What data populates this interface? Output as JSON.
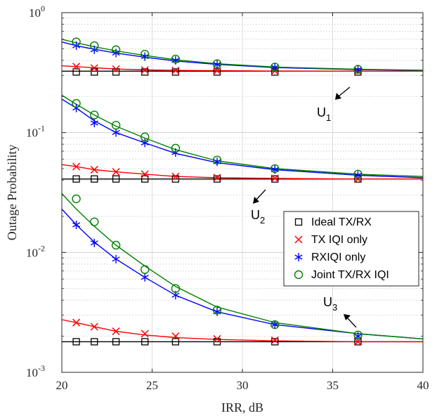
{
  "chart_data": {
    "type": "line",
    "xlabel": "IRR, dB",
    "ylabel": "Outage Probability",
    "xlim": [
      20,
      40
    ],
    "ylim": [
      0.001,
      1
    ],
    "yscale": "log",
    "grid": true,
    "legend_placement": "lower-right",
    "x_ticks": [
      20,
      25,
      30,
      35,
      40
    ],
    "y_ticks": [
      {
        "value": 0.001,
        "base": "10",
        "exp": "-3"
      },
      {
        "value": 0.01,
        "base": "10",
        "exp": "-2"
      },
      {
        "value": 0.1,
        "base": "10",
        "exp": "-1"
      },
      {
        "value": 1,
        "base": "10",
        "exp": "0"
      }
    ],
    "x_marker": [
      20.8,
      21.8,
      23.0,
      24.6,
      26.3,
      28.6,
      31.8,
      36.4
    ],
    "x_curve": [
      20,
      20.8,
      21.8,
      23.0,
      24.6,
      26.3,
      28.6,
      31.8,
      36.4,
      40
    ],
    "series": [
      {
        "name": "Ideal TX/RX",
        "color": "#000000",
        "marker": "square"
      },
      {
        "name": "TX IQI only",
        "color": "#ff0000",
        "marker": "x"
      },
      {
        "name": "RXIQI only",
        "color": "#0000ff",
        "marker": "asterisk"
      },
      {
        "name": "Joint TX/RX IQI",
        "color": "#008000",
        "marker": "circle"
      }
    ],
    "groups": [
      {
        "label": "U",
        "sub": "1",
        "ideal": {
          "marker": [
            0.32,
            0.32,
            0.32,
            0.32,
            0.32,
            0.32,
            0.32,
            0.32
          ],
          "curve": [
            0.325,
            0.325,
            0.325,
            0.325,
            0.325,
            0.325,
            0.325,
            0.325,
            0.325,
            0.325
          ]
        },
        "tx": {
          "marker": [
            0.355,
            0.345,
            0.338,
            0.332,
            0.329,
            0.327,
            0.326,
            0.325
          ],
          "curve": [
            0.36,
            0.355,
            0.347,
            0.339,
            0.333,
            0.33,
            0.328,
            0.326,
            0.325,
            0.325
          ]
        },
        "rx": {
          "marker": [
            0.53,
            0.49,
            0.46,
            0.43,
            0.4,
            0.37,
            0.35,
            0.335
          ],
          "curve": [
            0.57,
            0.53,
            0.495,
            0.46,
            0.425,
            0.395,
            0.37,
            0.348,
            0.335,
            0.33
          ]
        },
        "joint": {
          "marker": [
            0.57,
            0.53,
            0.49,
            0.45,
            0.41,
            0.375,
            0.352,
            0.337
          ],
          "curve": [
            0.6,
            0.56,
            0.52,
            0.48,
            0.44,
            0.405,
            0.375,
            0.352,
            0.337,
            0.331
          ]
        }
      },
      {
        "label": "U",
        "sub": "2",
        "ideal": {
          "marker": [
            0.041,
            0.041,
            0.041,
            0.041,
            0.041,
            0.041,
            0.041,
            0.041
          ],
          "curve": [
            0.041,
            0.041,
            0.041,
            0.041,
            0.041,
            0.041,
            0.041,
            0.041,
            0.041,
            0.041
          ]
        },
        "tx": {
          "marker": [
            0.052,
            0.049,
            0.047,
            0.045,
            0.043,
            0.042,
            0.0415,
            0.041
          ],
          "curve": [
            0.054,
            0.052,
            0.049,
            0.047,
            0.045,
            0.043,
            0.042,
            0.0415,
            0.041,
            0.041
          ]
        },
        "rx": {
          "marker": [
            0.16,
            0.12,
            0.1,
            0.082,
            0.068,
            0.057,
            0.049,
            0.044
          ],
          "curve": [
            0.19,
            0.16,
            0.125,
            0.1,
            0.082,
            0.067,
            0.056,
            0.049,
            0.044,
            0.042
          ]
        },
        "joint": {
          "marker": [
            0.175,
            0.14,
            0.115,
            0.092,
            0.074,
            0.059,
            0.05,
            0.045
          ],
          "curve": [
            0.205,
            0.172,
            0.14,
            0.113,
            0.09,
            0.072,
            0.058,
            0.05,
            0.045,
            0.043
          ]
        }
      },
      {
        "label": "U",
        "sub": "3",
        "ideal": {
          "marker": [
            0.0018,
            0.0018,
            0.0018,
            0.0018,
            0.0018,
            0.0018,
            0.0018,
            0.0018
          ],
          "curve": [
            0.0018,
            0.0018,
            0.0018,
            0.0018,
            0.0018,
            0.0018,
            0.0018,
            0.0018,
            0.0018,
            0.0018
          ]
        },
        "tx": {
          "marker": [
            0.0026,
            0.0024,
            0.0022,
            0.0021,
            0.002,
            0.0019,
            0.00185,
            0.0018
          ],
          "curve": [
            0.00275,
            0.0026,
            0.0024,
            0.0022,
            0.00205,
            0.00195,
            0.00188,
            0.00183,
            0.0018,
            0.0018
          ]
        },
        "rx": {
          "marker": [
            0.017,
            0.012,
            0.0088,
            0.0062,
            0.0044,
            0.0032,
            0.0025,
            0.002
          ],
          "curve": [
            0.023,
            0.017,
            0.0122,
            0.0088,
            0.0062,
            0.0044,
            0.0032,
            0.0025,
            0.0021,
            0.0019
          ]
        },
        "joint": {
          "marker": [
            0.028,
            0.018,
            0.0115,
            0.0072,
            0.005,
            0.0033,
            0.0025,
            0.00205
          ],
          "curve": [
            0.031,
            0.023,
            0.0165,
            0.0115,
            0.0077,
            0.0052,
            0.0035,
            0.0026,
            0.0021,
            0.0019
          ]
        }
      }
    ]
  },
  "annotations": [
    {
      "label": "U",
      "sub": "1"
    },
    {
      "label": "U",
      "sub": "2"
    },
    {
      "label": "U",
      "sub": "3"
    }
  ]
}
